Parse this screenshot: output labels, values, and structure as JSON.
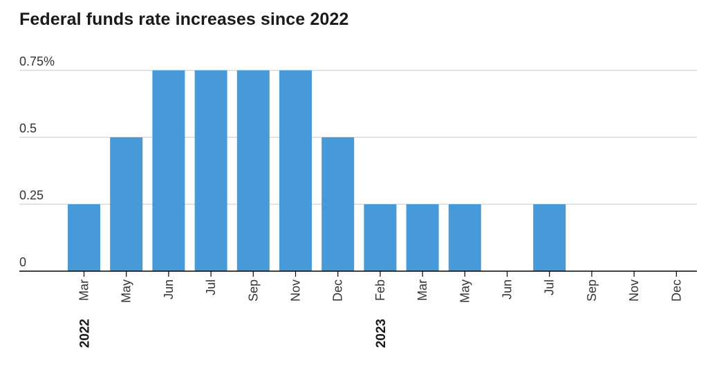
{
  "chart_data": {
    "type": "bar",
    "title": "Federal funds rate increases since 2022",
    "xlabel": "",
    "ylabel": "",
    "ylim": [
      0,
      0.75
    ],
    "y_ticks": [
      "0",
      "0.25",
      "0.5",
      "0.75%"
    ],
    "y_tick_values": [
      0,
      0.25,
      0.5,
      0.75
    ],
    "grid": true,
    "categories": [
      "Mar",
      "May",
      "Jun",
      "Jul",
      "Sep",
      "Nov",
      "Dec",
      "Feb",
      "Mar",
      "May",
      "Jun",
      "Jul",
      "Sep",
      "Nov",
      "Dec"
    ],
    "values": [
      0.25,
      0.5,
      0.75,
      0.75,
      0.75,
      0.75,
      0.5,
      0.25,
      0.25,
      0.25,
      0,
      0.25,
      0,
      0,
      0
    ],
    "year_labels": [
      {
        "label": "2022",
        "category_index": 0
      },
      {
        "label": "2023",
        "category_index": 7
      }
    ],
    "colors": {
      "bar": "#4799d8",
      "grid": "#d9d9d9",
      "axis": "#000000",
      "text": "#333333"
    }
  }
}
